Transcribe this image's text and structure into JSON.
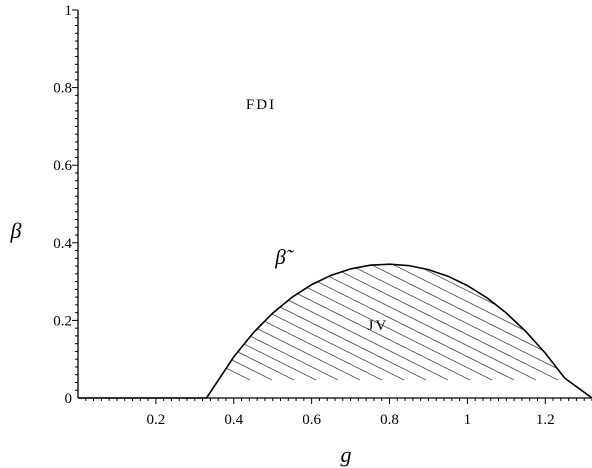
{
  "chart_data": {
    "type": "line",
    "xlabel": "g",
    "ylabel": "β",
    "xlim": [
      0,
      1.32
    ],
    "ylim": [
      0,
      1
    ],
    "xticks": [
      {
        "value": 0.2,
        "label": "0.2"
      },
      {
        "value": 0.4,
        "label": "0.4"
      },
      {
        "value": 0.6,
        "label": "0.6"
      },
      {
        "value": 0.8,
        "label": "0.8"
      },
      {
        "value": 1.0,
        "label": "1"
      },
      {
        "value": 1.2,
        "label": "1.2"
      }
    ],
    "yticks": [
      {
        "value": 0,
        "label": "0"
      },
      {
        "value": 0.2,
        "label": "0.2"
      },
      {
        "value": 0.4,
        "label": "0.4"
      },
      {
        "value": 0.6,
        "label": "0.6"
      },
      {
        "value": 0.8,
        "label": "0.8"
      },
      {
        "value": 1.0,
        "label": "1"
      }
    ],
    "series": [
      {
        "name": "β̃",
        "x": [
          0,
          0.33,
          0.4,
          0.45,
          0.5,
          0.55,
          0.6,
          0.65,
          0.7,
          0.75,
          0.8,
          0.85,
          0.9,
          0.95,
          1.0,
          1.05,
          1.1,
          1.15,
          1.2,
          1.25,
          1.32
        ],
        "y": [
          0,
          0,
          0.1059,
          0.1679,
          0.2188,
          0.2599,
          0.2922,
          0.3162,
          0.3327,
          0.3422,
          0.345,
          0.3412,
          0.3309,
          0.3139,
          0.2899,
          0.2584,
          0.219,
          0.1715,
          0.1156,
          0.0512,
          0.0
        ]
      }
    ],
    "shaded_region": {
      "label": "JV",
      "below_series": "β̃",
      "pattern": "hatched"
    },
    "annotations": [
      {
        "text": "FDI",
        "x": 0.47,
        "y": 0.745
      },
      {
        "text": "JV",
        "x": 0.77,
        "y": 0.175
      },
      {
        "text": "β̃",
        "x": 0.52,
        "y": 0.345
      }
    ],
    "grid": false,
    "legend": "none"
  }
}
